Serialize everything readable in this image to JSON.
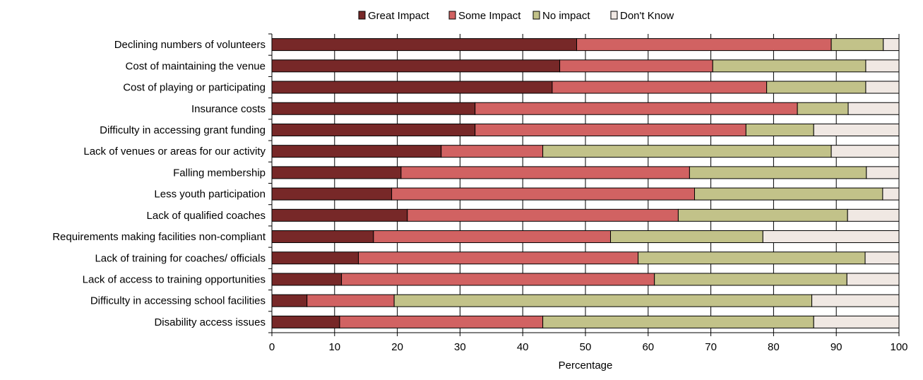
{
  "chart_data": {
    "type": "bar",
    "orientation": "horizontal",
    "stacked": true,
    "categories": [
      "Declining numbers of volunteers",
      "Cost of maintaining the venue",
      "Cost of playing or participating",
      "Insurance costs",
      "Difficulty in accessing grant funding",
      "Lack of venues or areas for our activity",
      "Falling membership",
      "Less youth participation",
      "Lack of qualified coaches",
      "Requirements making facilities non-compliant",
      "Lack of training for coaches/ officials",
      "Lack of access to training opportunities",
      "Difficulty in accessing school facilities",
      "Disability access issues"
    ],
    "series": [
      {
        "name": "Great Impact",
        "color": "#772828",
        "values": [
          48.6,
          45.9,
          44.7,
          32.4,
          32.4,
          27.0,
          20.6,
          19.1,
          21.6,
          16.2,
          13.8,
          11.1,
          5.6,
          10.8
        ]
      },
      {
        "name": "Some Impact",
        "color": "#d16262",
        "values": [
          40.6,
          24.4,
          34.2,
          51.4,
          43.2,
          16.2,
          46.0,
          48.3,
          43.2,
          37.8,
          44.6,
          49.9,
          13.9,
          32.4
        ]
      },
      {
        "name": "No impact",
        "color": "#c2c289",
        "values": [
          8.3,
          24.4,
          15.8,
          8.1,
          10.8,
          46.0,
          28.2,
          30.0,
          27.0,
          24.3,
          36.2,
          30.7,
          66.6,
          43.2
        ]
      },
      {
        "name": "Don't Know",
        "color": "#f0e8e3",
        "values": [
          2.5,
          5.3,
          5.3,
          8.1,
          13.6,
          10.8,
          5.2,
          2.6,
          8.2,
          21.7,
          5.4,
          8.3,
          13.9,
          13.6
        ]
      }
    ],
    "xlabel": "Percentage",
    "ylabel": "",
    "xlim": [
      0,
      100
    ],
    "xticks": [
      "0",
      "10",
      "20",
      "30",
      "40",
      "50",
      "60",
      "70",
      "80",
      "90",
      "100"
    ],
    "grid": "vertical",
    "legend_position": "top"
  }
}
